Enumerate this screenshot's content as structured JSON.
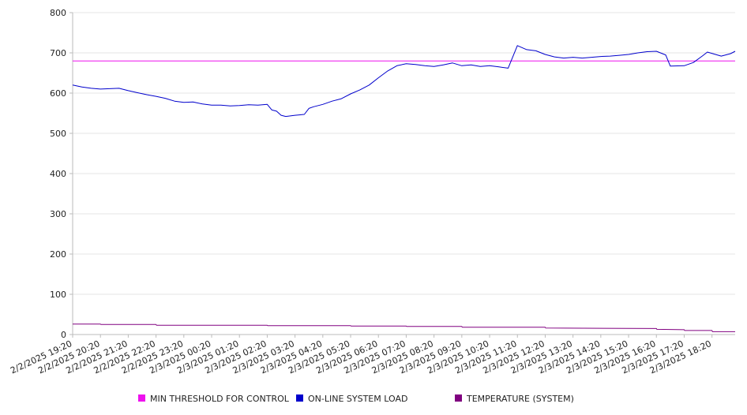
{
  "chart_data": {
    "type": "line",
    "ylim": [
      0,
      800
    ],
    "yticks": [
      0,
      100,
      200,
      300,
      400,
      500,
      600,
      700,
      800
    ],
    "xlim": [
      "2/2/2025 19:20",
      "2/3/2025 19:10"
    ],
    "xticks": [
      "2/2/2025 19:20",
      "2/2/2025 20:20",
      "2/2/2025 21:20",
      "2/2/2025 22:20",
      "2/2/2025 23:20",
      "2/3/2025 00:20",
      "2/3/2025 01:20",
      "2/3/2025 02:20",
      "2/3/2025 03:20",
      "2/3/2025 04:20",
      "2/3/2025 05:20",
      "2/3/2025 06:20",
      "2/3/2025 07:20",
      "2/3/2025 08:20",
      "2/3/2025 09:20",
      "2/3/2025 10:20",
      "2/3/2025 11:20",
      "2/3/2025 12:20",
      "2/3/2025 13:20",
      "2/3/2025 14:20",
      "2/3/2025 15:20",
      "2/3/2025 16:20",
      "2/3/2025 17:20",
      "2/3/2025 18:20"
    ],
    "grid": true,
    "legend_position": "bottom",
    "series": [
      {
        "name": "MIN THRESHOLD FOR CONTROL",
        "color": "#ee11ee",
        "points": [
          [
            "2/2/2025 19:20",
            680
          ],
          [
            "2/3/2025 19:10",
            680
          ]
        ]
      },
      {
        "name": "ON-LINE SYSTEM LOAD",
        "color": "#0000cc",
        "points": [
          [
            "2/2/2025 19:20",
            620
          ],
          [
            "2/2/2025 19:40",
            615
          ],
          [
            "2/2/2025 20:00",
            612
          ],
          [
            "2/2/2025 20:20",
            610
          ],
          [
            "2/2/2025 20:40",
            611
          ],
          [
            "2/2/2025 21:00",
            612
          ],
          [
            "2/2/2025 21:20",
            606
          ],
          [
            "2/2/2025 21:40",
            601
          ],
          [
            "2/2/2025 22:00",
            596
          ],
          [
            "2/2/2025 22:20",
            592
          ],
          [
            "2/2/2025 22:40",
            587
          ],
          [
            "2/2/2025 23:00",
            580
          ],
          [
            "2/2/2025 23:20",
            577
          ],
          [
            "2/2/2025 23:40",
            578
          ],
          [
            "2/3/2025 00:00",
            573
          ],
          [
            "2/3/2025 00:20",
            570
          ],
          [
            "2/3/2025 00:40",
            570
          ],
          [
            "2/3/2025 01:00",
            568
          ],
          [
            "2/3/2025 01:20",
            569
          ],
          [
            "2/3/2025 01:40",
            571
          ],
          [
            "2/3/2025 02:00",
            570
          ],
          [
            "2/3/2025 02:20",
            572
          ],
          [
            "2/3/2025 02:30",
            558
          ],
          [
            "2/3/2025 02:40",
            555
          ],
          [
            "2/3/2025 02:50",
            545
          ],
          [
            "2/3/2025 03:00",
            542
          ],
          [
            "2/3/2025 03:20",
            545
          ],
          [
            "2/3/2025 03:40",
            547
          ],
          [
            "2/3/2025 03:50",
            562
          ],
          [
            "2/3/2025 04:00",
            566
          ],
          [
            "2/3/2025 04:20",
            572
          ],
          [
            "2/3/2025 04:40",
            580
          ],
          [
            "2/3/2025 05:00",
            586
          ],
          [
            "2/3/2025 05:20",
            598
          ],
          [
            "2/3/2025 05:40",
            608
          ],
          [
            "2/3/2025 06:00",
            620
          ],
          [
            "2/3/2025 06:20",
            638
          ],
          [
            "2/3/2025 06:40",
            655
          ],
          [
            "2/3/2025 07:00",
            668
          ],
          [
            "2/3/2025 07:20",
            673
          ],
          [
            "2/3/2025 07:40",
            671
          ],
          [
            "2/3/2025 08:00",
            668
          ],
          [
            "2/3/2025 08:20",
            666
          ],
          [
            "2/3/2025 08:40",
            670
          ],
          [
            "2/3/2025 09:00",
            675
          ],
          [
            "2/3/2025 09:20",
            668
          ],
          [
            "2/3/2025 09:40",
            670
          ],
          [
            "2/3/2025 10:00",
            666
          ],
          [
            "2/3/2025 10:20",
            668
          ],
          [
            "2/3/2025 10:40",
            665
          ],
          [
            "2/3/2025 11:00",
            662
          ],
          [
            "2/3/2025 11:20",
            718
          ],
          [
            "2/3/2025 11:40",
            708
          ],
          [
            "2/3/2025 12:00",
            705
          ],
          [
            "2/3/2025 12:20",
            696
          ],
          [
            "2/3/2025 12:40",
            690
          ],
          [
            "2/3/2025 13:00",
            687
          ],
          [
            "2/3/2025 13:20",
            689
          ],
          [
            "2/3/2025 13:40",
            687
          ],
          [
            "2/3/2025 14:00",
            689
          ],
          [
            "2/3/2025 14:20",
            691
          ],
          [
            "2/3/2025 14:40",
            692
          ],
          [
            "2/3/2025 15:00",
            694
          ],
          [
            "2/3/2025 15:20",
            696
          ],
          [
            "2/3/2025 15:40",
            700
          ],
          [
            "2/3/2025 16:00",
            703
          ],
          [
            "2/3/2025 16:20",
            704
          ],
          [
            "2/3/2025 16:40",
            695
          ],
          [
            "2/3/2025 16:50",
            667
          ],
          [
            "2/3/2025 17:20",
            668
          ],
          [
            "2/3/2025 17:40",
            676
          ],
          [
            "2/3/2025 18:00",
            693
          ],
          [
            "2/3/2025 18:10",
            702
          ],
          [
            "2/3/2025 18:40",
            692
          ],
          [
            "2/3/2025 19:00",
            698
          ],
          [
            "2/3/2025 19:10",
            704
          ]
        ]
      },
      {
        "name": "TEMPERATURE (SYSTEM)",
        "color": "#800080",
        "points": [
          [
            "2/2/2025 19:20",
            26
          ],
          [
            "2/2/2025 20:20",
            26
          ],
          [
            "2/2/2025 20:21",
            25
          ],
          [
            "2/2/2025 22:20",
            25
          ],
          [
            "2/2/2025 22:21",
            23
          ],
          [
            "2/3/2025 02:20",
            23
          ],
          [
            "2/3/2025 02:21",
            22
          ],
          [
            "2/3/2025 05:20",
            22
          ],
          [
            "2/3/2025 05:21",
            21
          ],
          [
            "2/3/2025 07:20",
            21
          ],
          [
            "2/3/2025 07:21",
            20
          ],
          [
            "2/3/2025 09:20",
            20
          ],
          [
            "2/3/2025 09:21",
            18
          ],
          [
            "2/3/2025 12:20",
            18
          ],
          [
            "2/3/2025 12:21",
            16
          ],
          [
            "2/3/2025 16:20",
            15
          ],
          [
            "2/3/2025 16:21",
            13
          ],
          [
            "2/3/2025 17:20",
            12
          ],
          [
            "2/3/2025 17:21",
            10
          ],
          [
            "2/3/2025 18:20",
            10
          ],
          [
            "2/3/2025 18:21",
            7
          ],
          [
            "2/3/2025 19:10",
            7
          ]
        ]
      }
    ]
  }
}
